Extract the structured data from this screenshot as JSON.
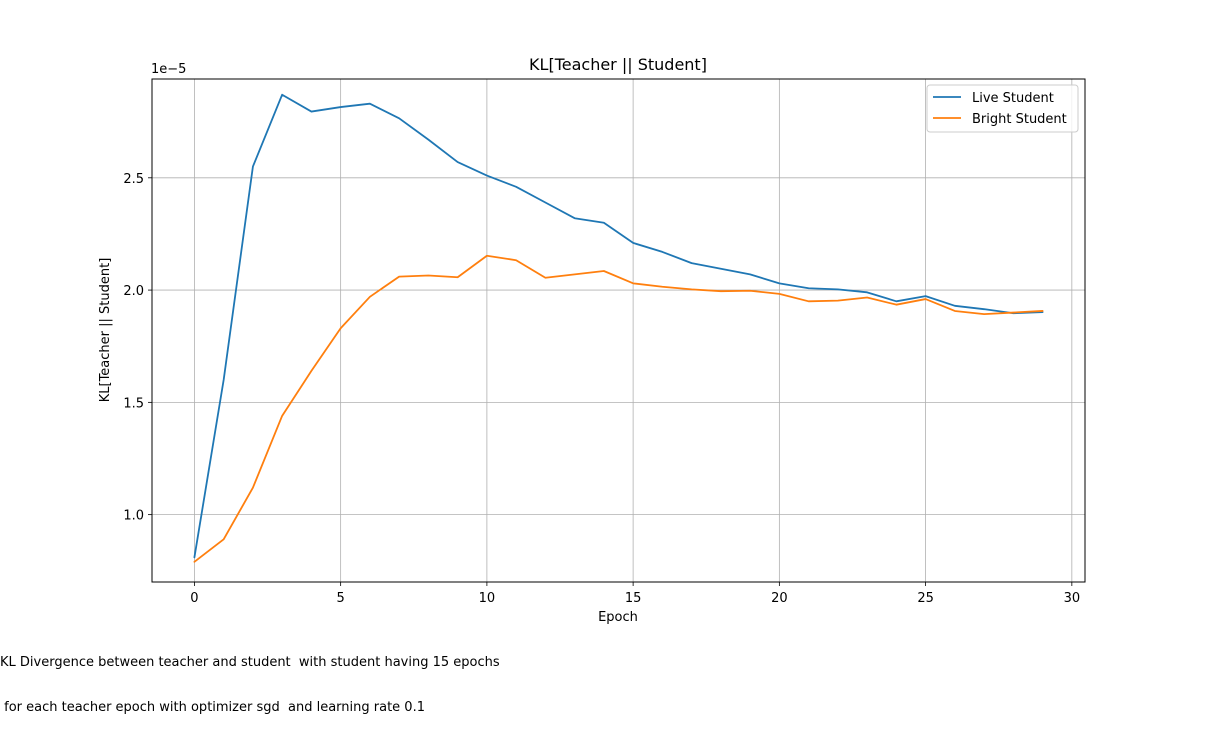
{
  "chart_data": {
    "type": "line",
    "title": "KL[Teacher || Student]",
    "xlabel": "Epoch",
    "ylabel": "KL[Teacher || Student]",
    "y_offset_label": "1e−5",
    "y_scale_factor": 1e-05,
    "xlim": [
      -1.45,
      30.45
    ],
    "ylim": [
      0.7,
      2.94
    ],
    "x_ticks": [
      0,
      5,
      10,
      15,
      20,
      25,
      30
    ],
    "y_ticks": [
      1.0,
      1.5,
      2.0,
      2.5
    ],
    "y_tick_labels": [
      "1.0",
      "1.5",
      "2.0",
      "2.5"
    ],
    "grid": true,
    "legend_position": "top-right",
    "x": [
      0,
      1,
      2,
      3,
      4,
      5,
      6,
      7,
      8,
      9,
      10,
      11,
      12,
      13,
      14,
      15,
      16,
      17,
      18,
      19,
      20,
      21,
      22,
      23,
      24,
      25,
      26,
      27,
      28,
      29
    ],
    "series": [
      {
        "name": "Live Student",
        "color": "#1f77b4",
        "values": [
          0.81,
          1.6,
          2.55,
          2.87,
          2.795,
          2.815,
          2.83,
          2.765,
          2.67,
          2.57,
          2.51,
          2.46,
          2.39,
          2.32,
          2.3,
          2.21,
          2.17,
          2.12,
          2.095,
          2.07,
          2.03,
          2.008,
          2.003,
          1.99,
          1.95,
          1.973,
          1.93,
          1.915,
          1.897,
          1.902
        ]
      },
      {
        "name": "Bright Student",
        "color": "#ff7f0e",
        "values": [
          0.79,
          0.89,
          1.12,
          1.44,
          1.64,
          1.83,
          1.97,
          2.06,
          2.065,
          2.057,
          2.153,
          2.133,
          2.055,
          2.07,
          2.085,
          2.03,
          2.015,
          2.003,
          1.995,
          1.997,
          1.983,
          1.95,
          1.953,
          1.967,
          1.935,
          1.96,
          1.907,
          1.893,
          1.9,
          1.907
        ]
      }
    ]
  },
  "caption": {
    "line1": "KL Divergence between teacher and student  with student having 15 epochs",
    "line2": " for each teacher epoch with optimizer sgd  and learning rate 0.1"
  }
}
